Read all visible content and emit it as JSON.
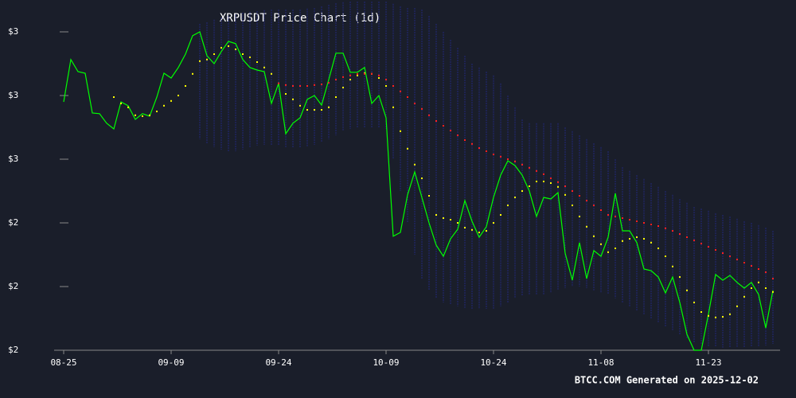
{
  "chart_data": {
    "type": "line",
    "title": "XRPUSDT Price Chart (1d)",
    "footer": "BTCC.COM Generated on 2025-12-02",
    "background": "#1a1e2a",
    "ylim": [
      2.0,
      3.0
    ],
    "yticks": [
      {
        "value": 3.0,
        "label": "$3"
      },
      {
        "value": 2.8,
        "label": "$3"
      },
      {
        "value": 2.6,
        "label": "$3"
      },
      {
        "value": 2.4,
        "label": "$2"
      },
      {
        "value": 2.2,
        "label": "$2"
      },
      {
        "value": 2.0,
        "label": "$2"
      }
    ],
    "categories": [
      "08-25",
      "08-26",
      "08-27",
      "08-28",
      "08-29",
      "08-30",
      "08-31",
      "09-01",
      "09-02",
      "09-03",
      "09-04",
      "09-05",
      "09-06",
      "09-07",
      "09-08",
      "09-09",
      "09-10",
      "09-11",
      "09-12",
      "09-13",
      "09-14",
      "09-15",
      "09-16",
      "09-17",
      "09-18",
      "09-19",
      "09-20",
      "09-21",
      "09-22",
      "09-23",
      "09-24",
      "09-25",
      "09-26",
      "09-27",
      "09-28",
      "09-29",
      "09-30",
      "10-01",
      "10-02",
      "10-03",
      "10-04",
      "10-05",
      "10-06",
      "10-07",
      "10-08",
      "10-09",
      "10-10",
      "10-11",
      "10-12",
      "10-13",
      "10-14",
      "10-15",
      "10-16",
      "10-17",
      "10-18",
      "10-19",
      "10-20",
      "10-21",
      "10-22",
      "10-23",
      "10-24",
      "10-25",
      "10-26",
      "10-27",
      "10-28",
      "10-29",
      "10-30",
      "10-31",
      "11-01",
      "11-02",
      "11-03",
      "11-04",
      "11-05",
      "11-06",
      "11-07",
      "11-08",
      "11-09",
      "11-10",
      "11-11",
      "11-12",
      "11-13",
      "11-14",
      "11-15",
      "11-16",
      "11-17",
      "11-18",
      "11-19",
      "11-20",
      "11-21",
      "11-22",
      "11-23",
      "11-24",
      "11-25",
      "11-26",
      "11-27",
      "11-28",
      "11-29",
      "11-30",
      "12-01",
      "12-02"
    ],
    "xticks": [
      "08-25",
      "09-09",
      "09-24",
      "10-09",
      "10-24",
      "11-08",
      "11-23"
    ],
    "band": {
      "color": "#23287a",
      "upper": [
        null,
        null,
        null,
        null,
        null,
        null,
        null,
        null,
        null,
        null,
        null,
        null,
        null,
        null,
        null,
        null,
        null,
        null,
        null,
        3.025,
        3.03,
        3.038,
        3.045,
        3.05,
        3.055,
        3.06,
        3.063,
        3.065,
        3.068,
        3.07,
        3.07,
        3.07,
        3.07,
        3.07,
        3.073,
        3.075,
        3.08,
        3.085,
        3.09,
        3.093,
        3.095,
        3.095,
        3.095,
        3.095,
        3.095,
        3.095,
        3.088,
        3.08,
        3.075,
        3.075,
        3.07,
        3.05,
        3.025,
        3.0,
        2.975,
        2.95,
        2.925,
        2.9,
        2.888,
        2.875,
        2.863,
        2.838,
        2.8,
        2.763,
        2.725,
        2.713,
        2.713,
        2.713,
        2.713,
        2.713,
        2.7,
        2.688,
        2.675,
        2.663,
        2.65,
        2.638,
        2.625,
        2.6,
        2.575,
        2.563,
        2.55,
        2.538,
        2.525,
        2.513,
        2.5,
        2.488,
        2.475,
        2.463,
        2.45,
        2.445,
        2.438,
        2.43,
        2.425,
        2.42,
        2.413,
        2.405,
        2.4,
        2.393,
        2.385,
        2.375
      ],
      "lower": [
        null,
        null,
        null,
        null,
        null,
        null,
        null,
        null,
        null,
        null,
        null,
        null,
        null,
        null,
        null,
        null,
        null,
        null,
        null,
        2.663,
        2.65,
        2.638,
        2.63,
        2.625,
        2.625,
        2.63,
        2.638,
        2.643,
        2.645,
        2.645,
        2.643,
        2.638,
        2.635,
        2.635,
        2.638,
        2.645,
        2.655,
        2.663,
        2.675,
        2.688,
        2.695,
        2.7,
        2.7,
        2.7,
        2.7,
        2.695,
        2.6,
        2.5,
        2.4,
        2.3,
        2.225,
        2.188,
        2.163,
        2.15,
        2.143,
        2.138,
        2.133,
        2.13,
        2.13,
        2.13,
        2.13,
        2.138,
        2.15,
        2.163,
        2.17,
        2.175,
        2.175,
        2.175,
        2.18,
        2.188,
        2.195,
        2.2,
        2.2,
        2.195,
        2.188,
        2.18,
        2.175,
        2.163,
        2.15,
        2.138,
        2.125,
        2.113,
        2.1,
        2.088,
        2.075,
        2.063,
        2.05,
        2.038,
        2.025,
        2.02,
        2.013,
        2.01,
        2.008,
        2.008,
        2.008,
        2.008,
        2.01,
        2.013,
        2.015,
        2.02
      ]
    },
    "series": [
      {
        "color": "#00ff00",
        "marker": "line",
        "values": [
          2.78,
          2.913,
          2.875,
          2.87,
          2.745,
          2.743,
          2.713,
          2.695,
          2.78,
          2.768,
          2.725,
          2.743,
          2.735,
          2.795,
          2.87,
          2.855,
          2.888,
          2.93,
          2.988,
          3.0,
          2.925,
          2.9,
          2.938,
          2.97,
          2.963,
          2.913,
          2.888,
          2.88,
          2.875,
          2.775,
          2.838,
          2.68,
          2.713,
          2.73,
          2.788,
          2.8,
          2.77,
          2.85,
          2.933,
          2.933,
          2.873,
          2.873,
          2.888,
          2.775,
          2.8,
          2.73,
          2.358,
          2.37,
          2.488,
          2.56,
          2.48,
          2.4,
          2.33,
          2.295,
          2.35,
          2.38,
          2.47,
          2.405,
          2.355,
          2.388,
          2.48,
          2.55,
          2.595,
          2.58,
          2.55,
          2.5,
          2.42,
          2.48,
          2.475,
          2.495,
          2.305,
          2.22,
          2.338,
          2.225,
          2.313,
          2.295,
          2.355,
          2.493,
          2.375,
          2.375,
          2.338,
          2.255,
          2.25,
          2.23,
          2.18,
          2.23,
          2.15,
          2.05,
          2.0,
          2.0,
          2.113,
          2.238,
          2.22,
          2.235,
          2.213,
          2.195,
          2.213,
          2.175,
          2.07,
          2.188
        ]
      },
      {
        "color": "#ffff00",
        "marker": "dots",
        "values": [
          null,
          null,
          null,
          null,
          null,
          null,
          null,
          2.795,
          2.775,
          2.763,
          2.738,
          2.735,
          2.738,
          2.75,
          2.768,
          2.783,
          2.8,
          2.83,
          2.868,
          2.908,
          2.913,
          2.93,
          2.95,
          2.955,
          2.945,
          2.93,
          2.92,
          2.905,
          2.888,
          2.868,
          2.838,
          2.805,
          2.788,
          2.768,
          2.755,
          2.755,
          2.755,
          2.763,
          2.795,
          2.825,
          2.85,
          2.863,
          2.87,
          2.868,
          2.855,
          2.83,
          2.763,
          2.688,
          2.633,
          2.583,
          2.54,
          2.485,
          2.425,
          2.415,
          2.41,
          2.4,
          2.385,
          2.378,
          2.37,
          2.375,
          2.4,
          2.425,
          2.455,
          2.48,
          2.5,
          2.515,
          2.53,
          2.53,
          2.525,
          2.513,
          2.488,
          2.455,
          2.42,
          2.388,
          2.358,
          2.333,
          2.308,
          2.32,
          2.343,
          2.35,
          2.355,
          2.35,
          2.338,
          2.32,
          2.295,
          2.263,
          2.23,
          2.188,
          2.15,
          2.12,
          2.108,
          2.103,
          2.105,
          2.113,
          2.138,
          2.168,
          2.195,
          2.213,
          2.195,
          2.183
        ]
      },
      {
        "color": "#ff2020",
        "marker": "dots",
        "values": [
          null,
          null,
          null,
          null,
          null,
          null,
          null,
          null,
          null,
          null,
          null,
          null,
          null,
          null,
          null,
          null,
          null,
          null,
          null,
          null,
          null,
          null,
          null,
          null,
          null,
          null,
          null,
          null,
          null,
          null,
          2.838,
          2.833,
          2.83,
          2.83,
          2.83,
          2.833,
          2.835,
          2.84,
          2.85,
          2.858,
          2.863,
          2.868,
          2.868,
          2.868,
          2.863,
          2.85,
          2.83,
          2.813,
          2.795,
          2.775,
          2.758,
          2.738,
          2.72,
          2.705,
          2.69,
          2.675,
          2.66,
          2.648,
          2.635,
          2.625,
          2.615,
          2.608,
          2.6,
          2.593,
          2.583,
          2.573,
          2.563,
          2.553,
          2.54,
          2.528,
          2.515,
          2.5,
          2.485,
          2.47,
          2.455,
          2.44,
          2.425,
          2.42,
          2.415,
          2.41,
          2.405,
          2.4,
          2.395,
          2.39,
          2.383,
          2.375,
          2.365,
          2.355,
          2.345,
          2.335,
          2.325,
          2.315,
          2.305,
          2.295,
          2.285,
          2.275,
          2.265,
          2.255,
          2.245,
          2.225
        ]
      }
    ]
  }
}
